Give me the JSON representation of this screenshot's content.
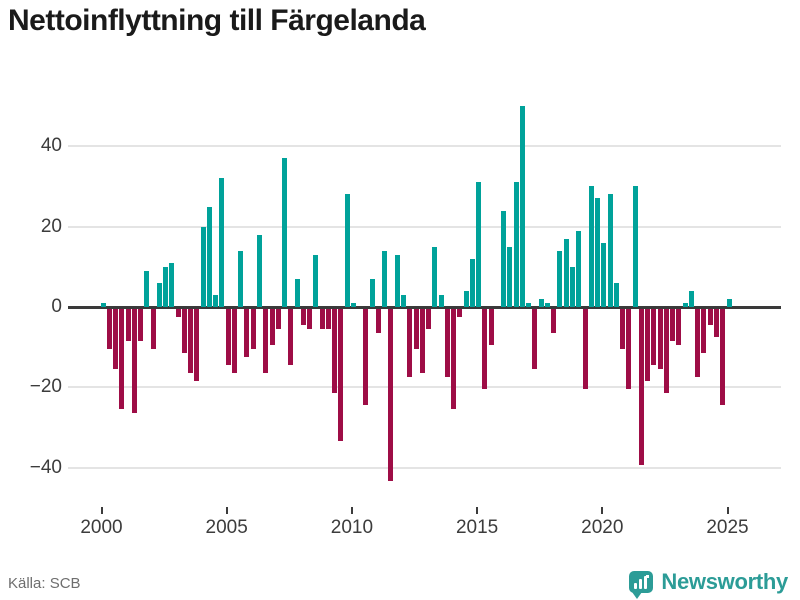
{
  "title": "Nettoinflyttning till Färgelanda",
  "source": {
    "label": "Källa: SCB"
  },
  "logo": {
    "text": "Newsworthy",
    "icon": "newsworthy-pin-barchart-icon",
    "color": "#2c9c97"
  },
  "colors": {
    "positive": "#00a29a",
    "negative": "#9e0d46",
    "grid": "#e4e4e4",
    "zero_line": "#3a3a3a",
    "axis_text": "#3c3c3c",
    "title_text": "#1a1a1a",
    "source_text": "#6e6e6e",
    "background": "#ffffff"
  },
  "chart_data": {
    "type": "bar",
    "title": "Nettoinflyttning till Färgelanda",
    "frequency": "quarterly",
    "x_start": {
      "year": 2000,
      "quarter": 1
    },
    "x_tick_labels": [
      "2000",
      "2005",
      "2010",
      "2015",
      "2020",
      "2025"
    ],
    "y_ticks": [
      40,
      20,
      0,
      -20,
      -40
    ],
    "ylim": [
      -50,
      54
    ],
    "grid": true,
    "legend": false,
    "series": [
      {
        "name": "Nettoinflyttning",
        "values": [
          1,
          -10,
          -15,
          -25,
          -8,
          -26,
          -8,
          9,
          -10,
          6,
          10,
          11,
          -2,
          -11,
          -16,
          -18,
          20,
          25,
          3,
          32,
          -14,
          -16,
          14,
          -12,
          -10,
          18,
          -16,
          -9,
          -5,
          37,
          -14,
          7,
          -4,
          -5,
          13,
          -5,
          -5,
          -21,
          -33,
          28,
          1,
          0,
          -24,
          7,
          -6,
          14,
          -43,
          13,
          3,
          -17,
          -10,
          -16,
          -5,
          15,
          3,
          -17,
          -25,
          -2,
          4,
          12,
          31,
          -20,
          -9,
          0,
          24,
          15,
          31,
          50,
          1,
          -15,
          2,
          1,
          -6,
          14,
          17,
          10,
          19,
          -20,
          30,
          27,
          16,
          28,
          6,
          -10,
          -20,
          30,
          -39,
          -18,
          -14,
          -15,
          -21,
          -8,
          -9,
          1,
          4,
          -17,
          -11,
          -4,
          -7,
          -24,
          2
        ]
      }
    ]
  }
}
